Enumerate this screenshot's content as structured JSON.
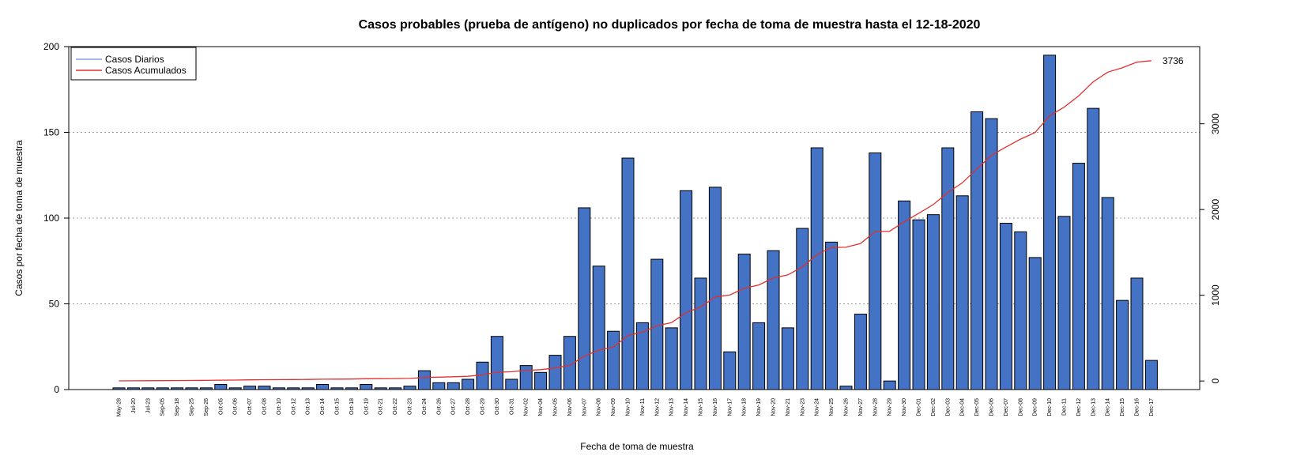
{
  "chart_data": {
    "type": "bar",
    "title": "Casos probables (prueba de antígeno) no duplicados por fecha de toma de muestra hasta el 12-18-2020",
    "xlabel": "Fecha de toma de muestra",
    "ylabel": "Casos por fecha de toma de muestra",
    "ylim": [
      0,
      200
    ],
    "y_ticks": [
      0,
      50,
      100,
      150,
      200
    ],
    "y2lim": [
      -100,
      3900
    ],
    "y2_ticks": [
      0,
      1000,
      2000,
      3000
    ],
    "grid": "horizontal dotted",
    "legend_position": "top-left",
    "categories": [
      "May-28",
      "Jul-20",
      "Jul-23",
      "Sep-05",
      "Sep-18",
      "Sep-25",
      "Sep-26",
      "Oct-05",
      "Oct-06",
      "Oct-07",
      "Oct-08",
      "Oct-10",
      "Oct-12",
      "Oct-13",
      "Oct-14",
      "Oct-15",
      "Oct-18",
      "Oct-19",
      "Oct-21",
      "Oct-22",
      "Oct-23",
      "Oct-24",
      "Oct-26",
      "Oct-27",
      "Oct-28",
      "Oct-29",
      "Oct-30",
      "Oct-31",
      "Nov-02",
      "Nov-04",
      "Nov-05",
      "Nov-06",
      "Nov-07",
      "Nov-08",
      "Nov-09",
      "Nov-10",
      "Nov-11",
      "Nov-12",
      "Nov-13",
      "Nov-14",
      "Nov-15",
      "Nov-16",
      "Nov-17",
      "Nov-18",
      "Nov-19",
      "Nov-20",
      "Nov-21",
      "Nov-23",
      "Nov-24",
      "Nov-25",
      "Nov-26",
      "Nov-27",
      "Nov-28",
      "Nov-29",
      "Nov-30",
      "Dec-01",
      "Dec-02",
      "Dec-03",
      "Dec-04",
      "Dec-05",
      "Dec-06",
      "Dec-07",
      "Dec-08",
      "Dec-09",
      "Dec-10",
      "Dec-11",
      "Dec-12",
      "Dec-13",
      "Dec-14",
      "Dec-15",
      "Dec-16",
      "Dec-17"
    ],
    "series": [
      {
        "name": "Casos Diarios",
        "type": "bar",
        "axis": "left",
        "color": "#4472C4",
        "values": [
          1,
          1,
          1,
          1,
          1,
          1,
          1,
          3,
          1,
          2,
          2,
          1,
          1,
          1,
          3,
          1,
          1,
          3,
          1,
          1,
          2,
          11,
          4,
          4,
          6,
          16,
          31,
          6,
          14,
          10,
          20,
          31,
          106,
          72,
          34,
          135,
          39,
          76,
          36,
          116,
          65,
          118,
          22,
          79,
          39,
          81,
          36,
          94,
          141,
          86,
          2,
          44,
          138,
          5,
          110,
          99,
          102,
          141,
          113,
          162,
          158,
          97,
          92,
          77,
          195,
          101,
          132,
          164,
          112,
          52,
          65,
          17
        ]
      },
      {
        "name": "Casos Acumulados",
        "type": "line",
        "axis": "right",
        "color": "#E03030",
        "values": [
          1,
          2,
          3,
          4,
          5,
          6,
          7,
          10,
          11,
          13,
          15,
          16,
          17,
          18,
          21,
          22,
          23,
          26,
          27,
          28,
          30,
          41,
          45,
          49,
          55,
          71,
          102,
          108,
          122,
          132,
          152,
          183,
          289,
          361,
          395,
          530,
          569,
          645,
          681,
          797,
          862,
          980,
          1002,
          1081,
          1120,
          1201,
          1237,
          1331,
          1472,
          1558,
          1560,
          1604,
          1742,
          1747,
          1857,
          1956,
          2058,
          2199,
          2312,
          2474,
          2632,
          2729,
          2821,
          2898,
          3093,
          3194,
          3326,
          3490,
          3602,
          3654,
          3719,
          3736
        ]
      }
    ],
    "annotations": [
      {
        "text": "3736",
        "series": "Casos Acumulados",
        "at": "last point"
      }
    ]
  }
}
